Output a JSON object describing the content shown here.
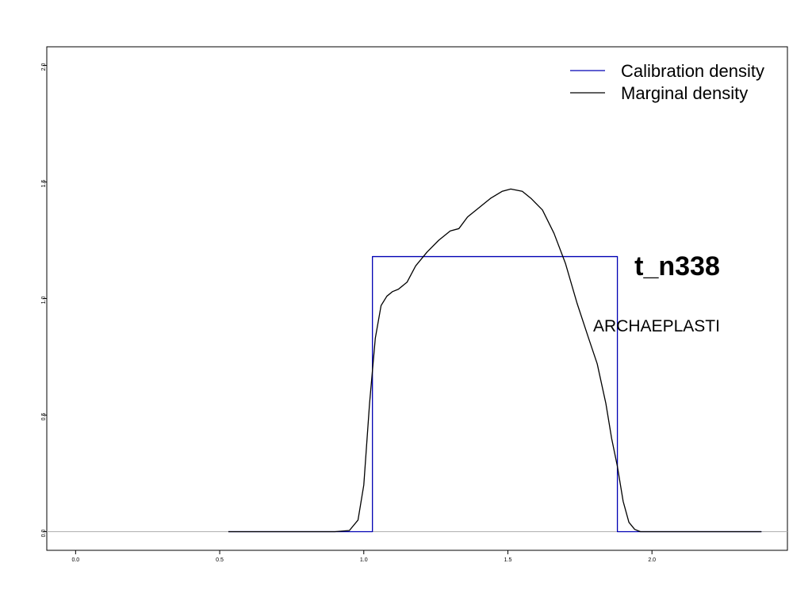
{
  "chart_data": {
    "type": "line",
    "title": "t_n338",
    "subtitle": "ARCHAEPLASTI",
    "xlabel": "",
    "ylabel": "",
    "xlim": [
      -0.1,
      2.47
    ],
    "ylim": [
      -0.08,
      2.08
    ],
    "x_ticks": [
      "0.0",
      "0.5",
      "1.0",
      "1.5",
      "2.0"
    ],
    "y_ticks": [
      "0.0",
      "0.5",
      "1.0",
      "1.5",
      "2.0"
    ],
    "grid": false,
    "baseline": 0.0,
    "legend": {
      "position": "top-right"
    },
    "series": [
      {
        "name": "Calibration density",
        "color": "#0000b3",
        "x": [
          0.53,
          1.03,
          1.03,
          1.88,
          1.88,
          2.38
        ],
        "y": [
          0.0,
          0.0,
          1.18,
          1.18,
          0.0,
          0.0
        ]
      },
      {
        "name": "Marginal density",
        "color": "#000000",
        "x": [
          0.53,
          0.9,
          0.95,
          0.98,
          1.0,
          1.02,
          1.04,
          1.06,
          1.08,
          1.1,
          1.12,
          1.15,
          1.18,
          1.22,
          1.26,
          1.3,
          1.33,
          1.36,
          1.4,
          1.44,
          1.48,
          1.51,
          1.55,
          1.58,
          1.62,
          1.66,
          1.7,
          1.74,
          1.78,
          1.81,
          1.84,
          1.86,
          1.88,
          1.9,
          1.92,
          1.94,
          1.96,
          2.0,
          2.38
        ],
        "y": [
          0.0,
          0.0,
          0.005,
          0.05,
          0.2,
          0.55,
          0.83,
          0.97,
          1.01,
          1.03,
          1.04,
          1.07,
          1.14,
          1.2,
          1.25,
          1.29,
          1.3,
          1.35,
          1.39,
          1.43,
          1.46,
          1.47,
          1.46,
          1.43,
          1.38,
          1.28,
          1.15,
          0.98,
          0.83,
          0.72,
          0.55,
          0.4,
          0.28,
          0.13,
          0.04,
          0.01,
          0.0,
          0.0,
          0.0
        ]
      }
    ]
  }
}
